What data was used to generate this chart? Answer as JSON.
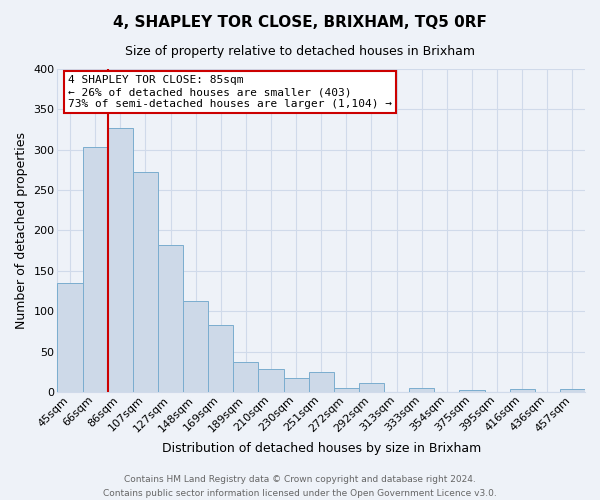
{
  "title": "4, SHAPLEY TOR CLOSE, BRIXHAM, TQ5 0RF",
  "subtitle": "Size of property relative to detached houses in Brixham",
  "xlabel": "Distribution of detached houses by size in Brixham",
  "ylabel": "Number of detached properties",
  "footer_line1": "Contains HM Land Registry data © Crown copyright and database right 2024.",
  "footer_line2": "Contains public sector information licensed under the Open Government Licence v3.0.",
  "bin_labels": [
    "45sqm",
    "66sqm",
    "86sqm",
    "107sqm",
    "127sqm",
    "148sqm",
    "169sqm",
    "189sqm",
    "210sqm",
    "230sqm",
    "251sqm",
    "272sqm",
    "292sqm",
    "313sqm",
    "333sqm",
    "354sqm",
    "375sqm",
    "395sqm",
    "416sqm",
    "436sqm",
    "457sqm"
  ],
  "bar_values": [
    135,
    303,
    327,
    272,
    182,
    113,
    83,
    37,
    28,
    17,
    25,
    5,
    11,
    0,
    5,
    0,
    2,
    0,
    3,
    0,
    3
  ],
  "bar_color": "#cdd9e8",
  "bar_edge_color": "#7aadcf",
  "annotation_title": "4 SHAPLEY TOR CLOSE: 85sqm",
  "annotation_line1": "← 26% of detached houses are smaller (403)",
  "annotation_line2": "73% of semi-detached houses are larger (1,104) →",
  "annotation_box_color": "#ffffff",
  "annotation_box_edge_color": "#cc0000",
  "red_line_color": "#cc0000",
  "ylim": [
    0,
    400
  ],
  "yticks": [
    0,
    50,
    100,
    150,
    200,
    250,
    300,
    350,
    400
  ],
  "grid_color": "#d0daea",
  "background_color": "#eef2f8",
  "title_fontsize": 11,
  "subtitle_fontsize": 9,
  "ylabel_fontsize": 9,
  "xlabel_fontsize": 9,
  "tick_fontsize": 8,
  "footer_fontsize": 6.5
}
